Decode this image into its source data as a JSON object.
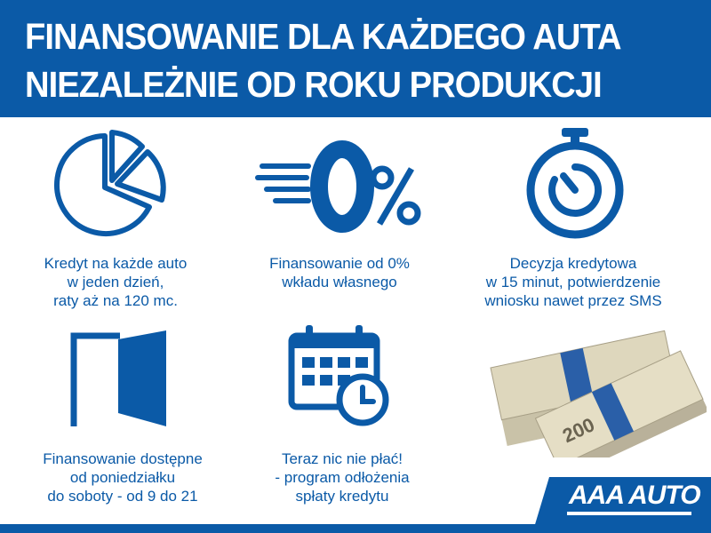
{
  "header": {
    "line1": "FINANSOWANIE DLA KAŻDEGO AUTA",
    "line2": "NIEZALEŻNIE OD ROKU PRODUKCJI"
  },
  "features": [
    {
      "icon": "pie-chart-icon",
      "lines": [
        "Kredyt na każde auto",
        "w jeden dzień,",
        "raty aż na 120 mc."
      ]
    },
    {
      "icon": "zero-percent-icon",
      "icon_text": "0%",
      "lines": [
        "Finansowanie od 0%",
        "wkładu własnego"
      ]
    },
    {
      "icon": "stopwatch-icon",
      "lines": [
        "Decyzja kredytowa",
        "w 15 minut, potwierdzenie",
        "wniosku nawet przez SMS"
      ]
    },
    {
      "icon": "door-icon",
      "lines": [
        "Finansowanie dostępne",
        "od poniedziałku",
        "do soboty - od 9 do 21"
      ]
    },
    {
      "icon": "calendar-clock-icon",
      "lines": [
        "Teraz nic nie płać!",
        "- program odłożenia",
        "spłaty kredytu"
      ]
    },
    {
      "icon": "money-stack-image",
      "banknote_value": "200"
    }
  ],
  "logo": {
    "text": "AAA AUTO"
  },
  "colors": {
    "brand_blue": "#0b5aa7",
    "white": "#ffffff"
  }
}
